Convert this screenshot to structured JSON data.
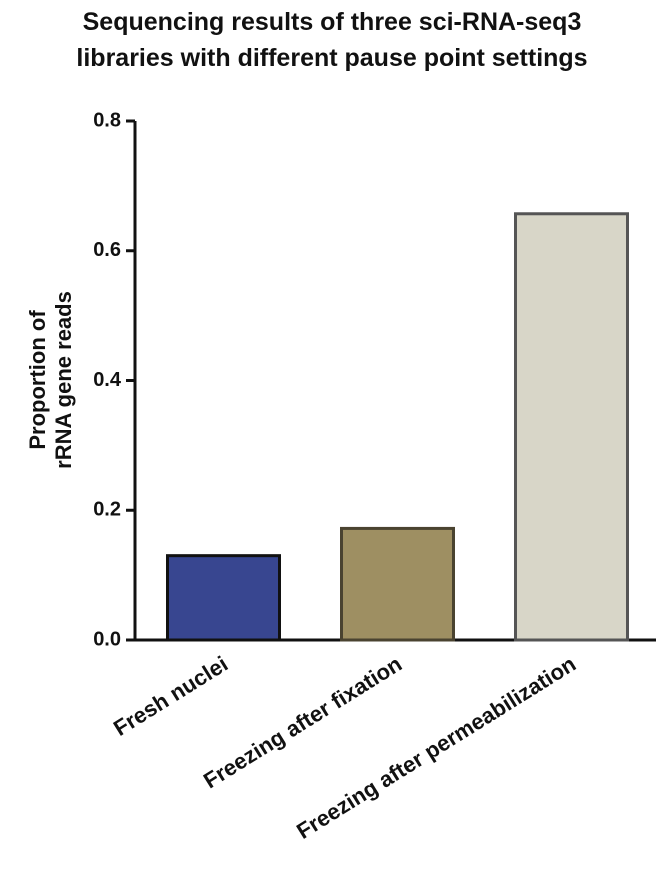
{
  "chart_data": {
    "type": "bar",
    "title": [
      "Sequencing results of three sci-RNA-seq3",
      "libraries with different pause point settings"
    ],
    "y_label": [
      "Proportion of",
      "rRNA gene reads"
    ],
    "categories": [
      "Fresh nuclei",
      "Freezing after fixation",
      "Freezing after permeabilization"
    ],
    "values": [
      0.13,
      0.172,
      0.657
    ],
    "colors": [
      "#384690",
      "#9e8f62",
      "#d8d6c8"
    ],
    "edge_colors": [
      "#111111",
      "#4a4330",
      "#555555"
    ],
    "ylim": [
      0,
      0.8
    ],
    "yticks": [
      {
        "value": 0,
        "label": "0.0"
      },
      0.2,
      0.4,
      0.6,
      0.8
    ]
  }
}
